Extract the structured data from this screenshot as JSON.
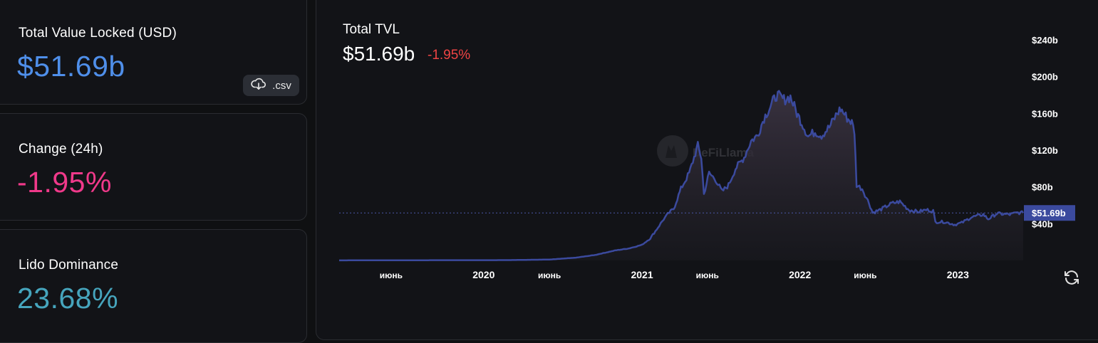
{
  "stats": [
    {
      "label": "Total Value Locked (USD)",
      "value": "$51.69b",
      "color": "#4f8fea"
    },
    {
      "label": "Change (24h)",
      "value": "-1.95%",
      "color": "#f0398a"
    },
    {
      "label": "Lido Dominance",
      "value": "23.68%",
      "color": "#46a5bd"
    }
  ],
  "csv_button": {
    "label": ".csv",
    "icon": "cloud-download-icon"
  },
  "chart_header": {
    "title": "Total TVL",
    "value": "$51.69b",
    "change": "-1.95%",
    "change_color": "#ef4444"
  },
  "watermark": "DeFiLlama",
  "refresh_icon": "refresh-icon",
  "chart_data": {
    "type": "area",
    "title": "",
    "xlabel": "",
    "ylabel": "",
    "x_ticks": [
      "июнь",
      "2020",
      "июнь",
      "2021",
      "июнь",
      "2022",
      "июнь",
      "2023"
    ],
    "y_ticks": [
      "$40b",
      "$80b",
      "$120b",
      "$160b",
      "$200b",
      "$240b"
    ],
    "ylim": [
      0,
      240
    ],
    "y_unit": "billion USD",
    "grid": false,
    "current_value": 51.69,
    "current_label": "$51.69b",
    "line_color": "#3b4a9e",
    "series": [
      {
        "values": [
          [
            "2019-02-01",
            0.1
          ],
          [
            "2019-06-01",
            0.2
          ],
          [
            "2019-10-01",
            0.3
          ],
          [
            "2020-01-01",
            0.3
          ],
          [
            "2020-03-01",
            0.4
          ],
          [
            "2020-06-01",
            1.0
          ],
          [
            "2020-08-01",
            3.0
          ],
          [
            "2020-09-15",
            6.0
          ],
          [
            "2020-11-01",
            11.0
          ],
          [
            "2020-12-01",
            13.0
          ],
          [
            "2021-01-01",
            17.0
          ],
          [
            "2021-01-20",
            24.0
          ],
          [
            "2021-02-10",
            38.0
          ],
          [
            "2021-02-20",
            45.0
          ],
          [
            "2021-03-05",
            52.0
          ],
          [
            "2021-03-15",
            56.0
          ],
          [
            "2021-04-01",
            78.0
          ],
          [
            "2021-04-20",
            95.0
          ],
          [
            "2021-05-10",
            125.0
          ],
          [
            "2021-05-18",
            112.0
          ],
          [
            "2021-05-24",
            72.0
          ],
          [
            "2021-06-05",
            95.0
          ],
          [
            "2021-06-20",
            88.0
          ],
          [
            "2021-07-05",
            75.0
          ],
          [
            "2021-07-20",
            82.0
          ],
          [
            "2021-08-05",
            100.0
          ],
          [
            "2021-08-25",
            112.0
          ],
          [
            "2021-09-10",
            130.0
          ],
          [
            "2021-09-25",
            136.0
          ],
          [
            "2021-10-10",
            155.0
          ],
          [
            "2021-10-25",
            168.0
          ],
          [
            "2021-11-08",
            180.0
          ],
          [
            "2021-11-25",
            175.0
          ],
          [
            "2021-12-10",
            178.0
          ],
          [
            "2021-12-25",
            160.0
          ],
          [
            "2022-01-05",
            150.0
          ],
          [
            "2022-01-20",
            135.0
          ],
          [
            "2022-02-05",
            140.0
          ],
          [
            "2022-02-20",
            136.0
          ],
          [
            "2022-03-10",
            145.0
          ],
          [
            "2022-03-28",
            160.0
          ],
          [
            "2022-04-05",
            165.0
          ],
          [
            "2022-04-20",
            155.0
          ],
          [
            "2022-05-01",
            150.0
          ],
          [
            "2022-05-07",
            140.0
          ],
          [
            "2022-05-12",
            82.0
          ],
          [
            "2022-05-25",
            78.0
          ],
          [
            "2022-06-10",
            62.0
          ],
          [
            "2022-06-18",
            52.0
          ],
          [
            "2022-07-05",
            55.0
          ],
          [
            "2022-08-01",
            62.0
          ],
          [
            "2022-08-20",
            64.0
          ],
          [
            "2022-09-10",
            55.0
          ],
          [
            "2022-10-01",
            53.0
          ],
          [
            "2022-10-20",
            55.0
          ],
          [
            "2022-11-05",
            54.0
          ],
          [
            "2022-11-10",
            42.0
          ],
          [
            "2022-12-01",
            42.0
          ],
          [
            "2022-12-25",
            39.0
          ],
          [
            "2023-01-10",
            41.0
          ],
          [
            "2023-02-01",
            47.0
          ],
          [
            "2023-03-01",
            50.0
          ],
          [
            "2023-03-12",
            45.0
          ],
          [
            "2023-04-01",
            51.0
          ],
          [
            "2023-05-01",
            50.0
          ],
          [
            "2023-05-20",
            52.0
          ],
          [
            "2023-06-01",
            51.69
          ]
        ]
      }
    ]
  }
}
